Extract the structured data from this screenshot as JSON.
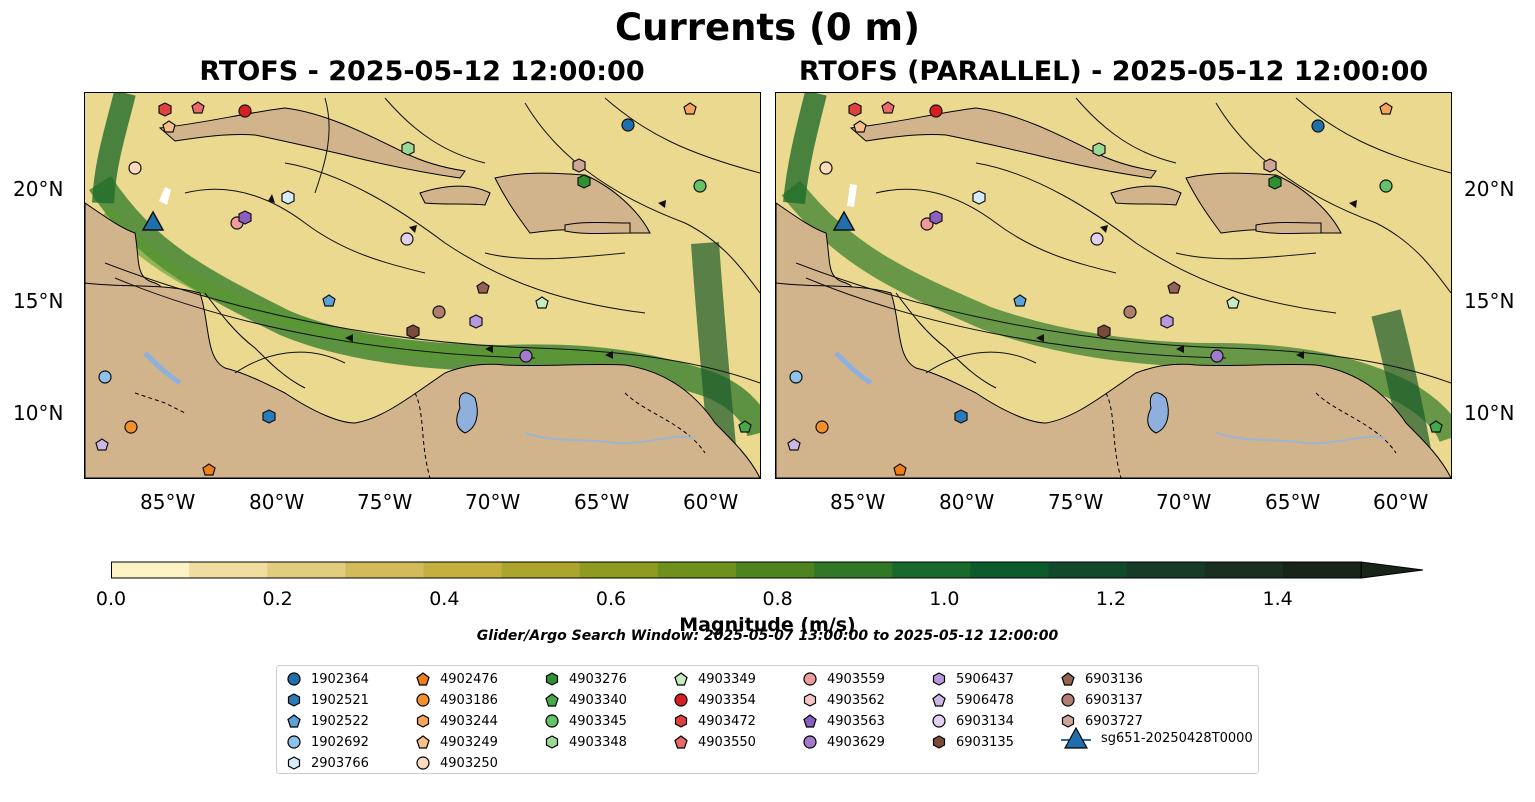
{
  "title": "Currents (0 m)",
  "panels": [
    {
      "title": "RTOFS - 2025-05-12 12:00:00"
    },
    {
      "title": "RTOFS (PARALLEL) - 2025-05-12 12:00:00"
    }
  ],
  "lon_ticks": [
    "85°W",
    "80°W",
    "75°W",
    "70°W",
    "65°W",
    "60°W"
  ],
  "lat_ticks": [
    "20°N",
    "15°N",
    "10°N"
  ],
  "colorbar": {
    "label": "Magnitude (m/s)",
    "ticks": [
      "0.0",
      "0.2",
      "0.4",
      "0.6",
      "0.8",
      "1.0",
      "1.2",
      "1.4"
    ],
    "range": [
      0,
      1.5
    ],
    "extend": "max",
    "colors": [
      "#fbf3c4",
      "#efdea0",
      "#e2cc7e",
      "#d3bb5c",
      "#c3b03f",
      "#aba52d",
      "#8f9b20",
      "#6f901c",
      "#4d8420",
      "#307826",
      "#176a2c",
      "#0c5b2b",
      "#104a2a",
      "#163b27",
      "#1a2f22",
      "#192419"
    ]
  },
  "search_window": "Glider/Argo Search Window: 2025-05-07 13:00:00 to 2025-05-12 12:00:00",
  "land_color": "#d2b48c",
  "water_body_color": "#8fb0dc",
  "legend": [
    {
      "label": "1902364",
      "marker": "circle",
      "color": "#1f6fad"
    },
    {
      "label": "1902521",
      "marker": "hexagon",
      "color": "#2b7bba"
    },
    {
      "label": "1902522",
      "marker": "pentagon",
      "color": "#5aa2d8"
    },
    {
      "label": "1902692",
      "marker": "circle",
      "color": "#8ec2ea"
    },
    {
      "label": "2903766",
      "marker": "hexagon",
      "color": "#d6ecfb"
    },
    {
      "label": "4902476",
      "marker": "pentagon",
      "color": "#f07f16"
    },
    {
      "label": "4903186",
      "marker": "circle",
      "color": "#f4902c"
    },
    {
      "label": "4903244",
      "marker": "hexagon",
      "color": "#f6a45a"
    },
    {
      "label": "4903249",
      "marker": "pentagon",
      "color": "#f9c08a"
    },
    {
      "label": "4903250",
      "marker": "circle",
      "color": "#fcdcbd"
    },
    {
      "label": "4903276",
      "marker": "hexagon",
      "color": "#2f8f33"
    },
    {
      "label": "4903340",
      "marker": "pentagon",
      "color": "#45a94a"
    },
    {
      "label": "4903345",
      "marker": "circle",
      "color": "#66c065"
    },
    {
      "label": "4903348",
      "marker": "hexagon",
      "color": "#9bd996"
    },
    {
      "label": "4903349",
      "marker": "pentagon",
      "color": "#c6ecc0"
    },
    {
      "label": "4903354",
      "marker": "circle",
      "color": "#d62020"
    },
    {
      "label": "4903472",
      "marker": "hexagon",
      "color": "#e04040"
    },
    {
      "label": "4903550",
      "marker": "pentagon",
      "color": "#ea6a6a"
    },
    {
      "label": "4903559",
      "marker": "circle",
      "color": "#f09a9a"
    },
    {
      "label": "4903562",
      "marker": "hexagon",
      "color": "#f8c6c6"
    },
    {
      "label": "4903563",
      "marker": "pentagon",
      "color": "#8b5fbf"
    },
    {
      "label": "4903629",
      "marker": "circle",
      "color": "#a27ad0"
    },
    {
      "label": "5906437",
      "marker": "hexagon",
      "color": "#b798dc"
    },
    {
      "label": "5906478",
      "marker": "pentagon",
      "color": "#ccb6e6"
    },
    {
      "label": "6903134",
      "marker": "circle",
      "color": "#e1d0f2"
    },
    {
      "label": "6903135",
      "marker": "hexagon",
      "color": "#7b4a3a"
    },
    {
      "label": "6903136",
      "marker": "pentagon",
      "color": "#956352"
    },
    {
      "label": "6903137",
      "marker": "circle",
      "color": "#b07e6e"
    },
    {
      "label": "6903727",
      "marker": "hexagon",
      "color": "#cfa598"
    },
    {
      "label": "sg651-20250428T0000",
      "marker": "triangle",
      "color": "#1f6fad"
    }
  ]
}
